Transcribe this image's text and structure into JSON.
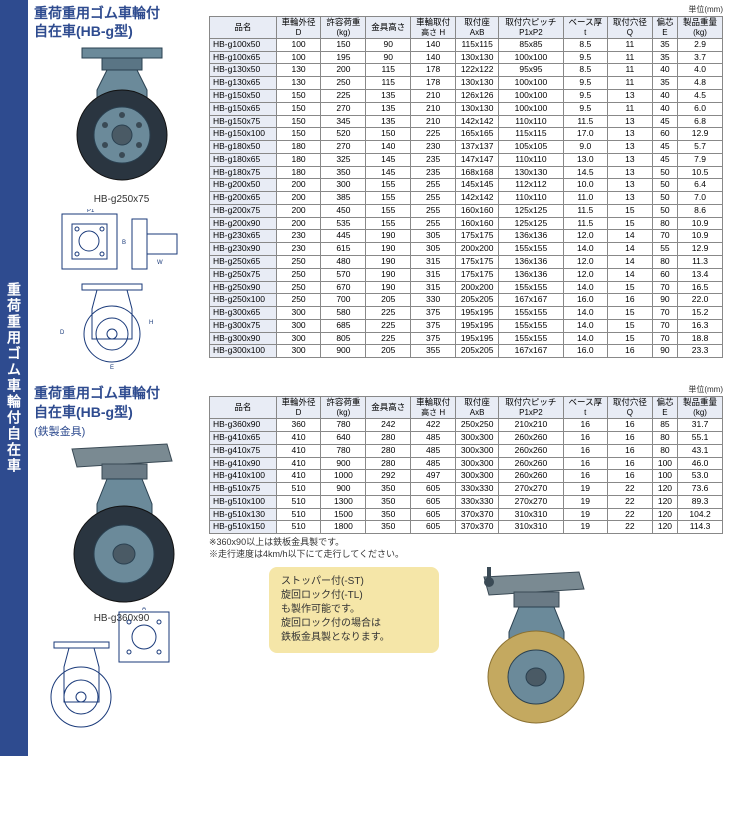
{
  "sidebar": {
    "label": "重荷重用ゴム車輪付自在車"
  },
  "unit_label": "単位(mm)",
  "columns": [
    {
      "h1": "品名",
      "h2": ""
    },
    {
      "h1": "車輪外径",
      "h2": "D"
    },
    {
      "h1": "許容荷重",
      "h2": "(kg)"
    },
    {
      "h1": "金具高さ",
      "h2": ""
    },
    {
      "h1": "車輪取付",
      "h2": "高さ H"
    },
    {
      "h1": "取付座",
      "h2": "AxB"
    },
    {
      "h1": "取付穴ピッチ",
      "h2": "P1xP2"
    },
    {
      "h1": "ベース厚",
      "h2": "t"
    },
    {
      "h1": "取付穴径",
      "h2": "Q"
    },
    {
      "h1": "偏芯",
      "h2": "E"
    },
    {
      "h1": "製品重量",
      "h2": "(kg)"
    }
  ],
  "section1": {
    "title1": "重荷重用ゴム車輪付",
    "title2": "自在車(HB-g型)",
    "caption": "HB-g250x75",
    "rows": [
      [
        "HB-g100x50",
        "100",
        "150",
        "90",
        "140",
        "115x115",
        "85x85",
        "8.5",
        "11",
        "35",
        "2.9"
      ],
      [
        "HB-g100x65",
        "100",
        "195",
        "90",
        "140",
        "130x130",
        "100x100",
        "9.5",
        "11",
        "35",
        "3.7"
      ],
      [
        "HB-g130x50",
        "130",
        "200",
        "115",
        "178",
        "122x122",
        "95x95",
        "8.5",
        "11",
        "40",
        "4.0"
      ],
      [
        "HB-g130x65",
        "130",
        "250",
        "115",
        "178",
        "130x130",
        "100x100",
        "9.5",
        "11",
        "35",
        "4.8"
      ],
      [
        "HB-g150x50",
        "150",
        "225",
        "135",
        "210",
        "126x126",
        "100x100",
        "9.5",
        "13",
        "40",
        "4.5"
      ],
      [
        "HB-g150x65",
        "150",
        "270",
        "135",
        "210",
        "130x130",
        "100x100",
        "9.5",
        "11",
        "40",
        "6.0"
      ],
      [
        "HB-g150x75",
        "150",
        "345",
        "135",
        "210",
        "142x142",
        "110x110",
        "11.5",
        "13",
        "45",
        "6.8"
      ],
      [
        "HB-g150x100",
        "150",
        "520",
        "150",
        "225",
        "165x165",
        "115x115",
        "17.0",
        "13",
        "60",
        "12.9"
      ],
      [
        "HB-g180x50",
        "180",
        "270",
        "140",
        "230",
        "137x137",
        "105x105",
        "9.0",
        "13",
        "45",
        "5.7"
      ],
      [
        "HB-g180x65",
        "180",
        "325",
        "145",
        "235",
        "147x147",
        "110x110",
        "13.0",
        "13",
        "45",
        "7.9"
      ],
      [
        "HB-g180x75",
        "180",
        "350",
        "145",
        "235",
        "168x168",
        "130x130",
        "14.5",
        "13",
        "50",
        "10.5"
      ],
      [
        "HB-g200x50",
        "200",
        "300",
        "155",
        "255",
        "145x145",
        "112x112",
        "10.0",
        "13",
        "50",
        "6.4"
      ],
      [
        "HB-g200x65",
        "200",
        "385",
        "155",
        "255",
        "142x142",
        "110x110",
        "11.0",
        "13",
        "50",
        "7.0"
      ],
      [
        "HB-g200x75",
        "200",
        "450",
        "155",
        "255",
        "160x160",
        "125x125",
        "11.5",
        "15",
        "50",
        "8.6"
      ],
      [
        "HB-g200x90",
        "200",
        "535",
        "155",
        "255",
        "160x160",
        "125x125",
        "11.5",
        "15",
        "80",
        "10.9"
      ],
      [
        "HB-g230x65",
        "230",
        "445",
        "190",
        "305",
        "175x175",
        "136x136",
        "12.0",
        "14",
        "70",
        "10.9"
      ],
      [
        "HB-g230x90",
        "230",
        "615",
        "190",
        "305",
        "200x200",
        "155x155",
        "14.0",
        "14",
        "55",
        "12.9"
      ],
      [
        "HB-g250x65",
        "250",
        "480",
        "190",
        "315",
        "175x175",
        "136x136",
        "12.0",
        "14",
        "80",
        "11.3"
      ],
      [
        "HB-g250x75",
        "250",
        "570",
        "190",
        "315",
        "175x175",
        "136x136",
        "12.0",
        "14",
        "60",
        "13.4"
      ],
      [
        "HB-g250x90",
        "250",
        "670",
        "190",
        "315",
        "200x200",
        "155x155",
        "14.0",
        "15",
        "70",
        "16.5"
      ],
      [
        "HB-g250x100",
        "250",
        "700",
        "205",
        "330",
        "205x205",
        "167x167",
        "16.0",
        "16",
        "90",
        "22.0"
      ],
      [
        "HB-g300x65",
        "300",
        "580",
        "225",
        "375",
        "195x195",
        "155x155",
        "14.0",
        "15",
        "70",
        "15.2"
      ],
      [
        "HB-g300x75",
        "300",
        "685",
        "225",
        "375",
        "195x195",
        "155x155",
        "14.0",
        "15",
        "70",
        "16.3"
      ],
      [
        "HB-g300x90",
        "300",
        "805",
        "225",
        "375",
        "195x195",
        "155x155",
        "14.0",
        "15",
        "70",
        "18.8"
      ],
      [
        "HB-g300x100",
        "300",
        "900",
        "205",
        "355",
        "205x205",
        "167x167",
        "16.0",
        "16",
        "90",
        "23.3"
      ]
    ],
    "group_starts": [
      0,
      2,
      4,
      8,
      11,
      15,
      17,
      21
    ]
  },
  "section2": {
    "title1": "重荷重用ゴム車輪付",
    "title2": "自在車(HB-g型)",
    "subtitle": "(鉄製金具)",
    "caption": "HB-g360x90",
    "rows": [
      [
        "HB-g360x90",
        "360",
        "780",
        "242",
        "422",
        "250x250",
        "210x210",
        "16",
        "16",
        "85",
        "31.7"
      ],
      [
        "HB-g410x65",
        "410",
        "640",
        "280",
        "485",
        "300x300",
        "260x260",
        "16",
        "16",
        "80",
        "55.1"
      ],
      [
        "HB-g410x75",
        "410",
        "780",
        "280",
        "485",
        "300x300",
        "260x260",
        "16",
        "16",
        "80",
        "43.1"
      ],
      [
        "HB-g410x90",
        "410",
        "900",
        "280",
        "485",
        "300x300",
        "260x260",
        "16",
        "16",
        "100",
        "46.0"
      ],
      [
        "HB-g410x100",
        "410",
        "1000",
        "292",
        "497",
        "300x300",
        "260x260",
        "16",
        "16",
        "100",
        "53.0"
      ],
      [
        "HB-g510x75",
        "510",
        "900",
        "350",
        "605",
        "330x330",
        "270x270",
        "19",
        "22",
        "120",
        "73.6"
      ],
      [
        "HB-g510x100",
        "510",
        "1300",
        "350",
        "605",
        "330x330",
        "270x270",
        "19",
        "22",
        "120",
        "89.3"
      ],
      [
        "HB-g510x130",
        "510",
        "1500",
        "350",
        "605",
        "370x370",
        "310x310",
        "19",
        "22",
        "120",
        "104.2"
      ],
      [
        "HB-g510x150",
        "510",
        "1800",
        "350",
        "605",
        "370x370",
        "310x310",
        "19",
        "22",
        "120",
        "114.3"
      ]
    ],
    "group_starts": [
      0,
      1,
      5
    ],
    "note1": "※360x90以上は鉄板金具製です。",
    "note2": "※走行速度は4km/h以下にて走行してください。"
  },
  "info_box": {
    "line1": "ストッパー付(-ST)",
    "line2": "旋回ロック付(-TL)",
    "line3": "も製作可能です。",
    "line4": "旋回ロック付の場合は",
    "line5": "鉄板金具製となります。"
  },
  "styling": {
    "header_bg": "#e8ecf5",
    "border": "#888",
    "brand_color": "#2e4b8f",
    "infobox_bg": "#f5e6a8"
  }
}
